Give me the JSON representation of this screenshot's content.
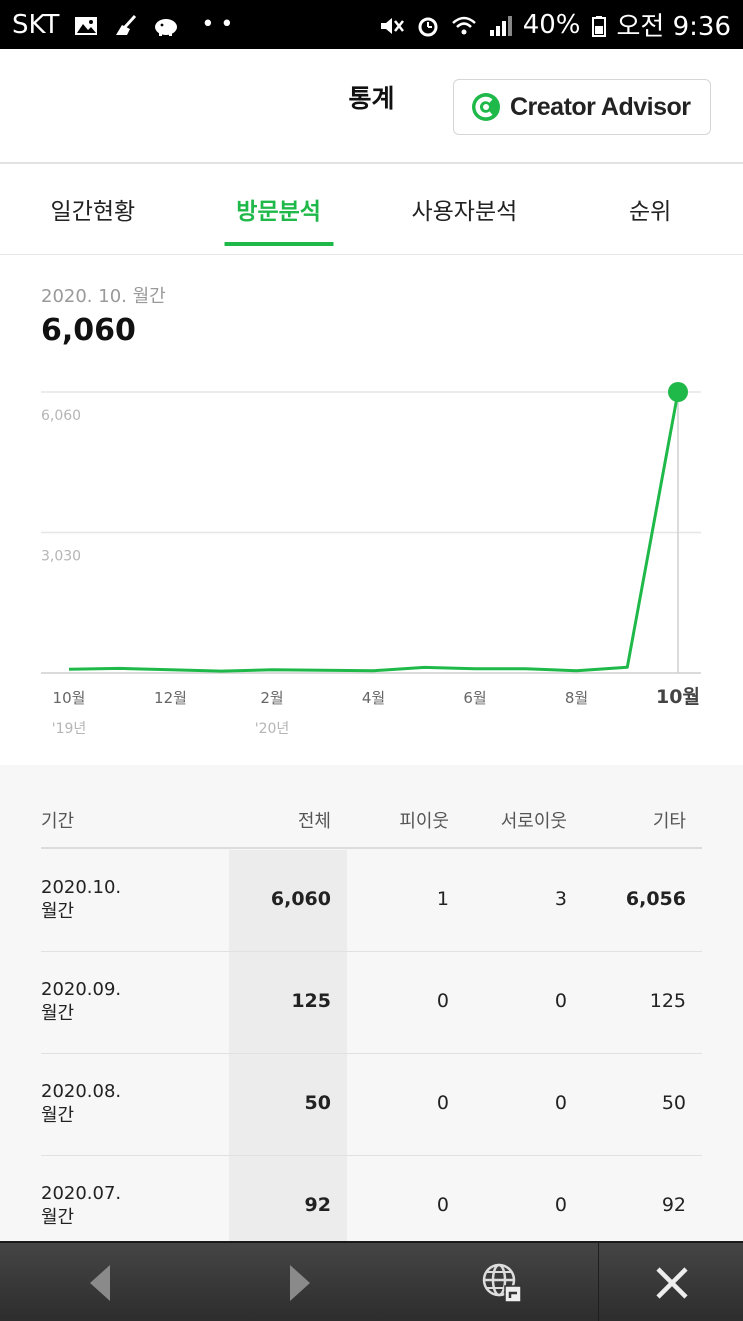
{
  "statusbar": {
    "carrier": "SKT",
    "battery": "40%",
    "time": "오전 9:36"
  },
  "header": {
    "title": "통계",
    "creator_advisor_label": "Creator Advisor"
  },
  "tabs": [
    {
      "label": "일간현황",
      "active": false
    },
    {
      "label": "방문분석",
      "active": true
    },
    {
      "label": "사용자분석",
      "active": false
    },
    {
      "label": "순위",
      "active": false
    }
  ],
  "summary": {
    "period": "2020. 10. 월간",
    "total": "6,060"
  },
  "chart_data": {
    "type": "line",
    "color": "#1fb94a",
    "y_ticks": [
      "6,060",
      "3,030"
    ],
    "ylim": [
      0,
      6060
    ],
    "x_labels": [
      {
        "label": "10월",
        "sub": "'19년",
        "index": 0
      },
      {
        "label": "12월",
        "sub": "",
        "index": 2
      },
      {
        "label": "2월",
        "sub": "'20년",
        "index": 4
      },
      {
        "label": "4월",
        "sub": "",
        "index": 6
      },
      {
        "label": "6월",
        "sub": "",
        "index": 8
      },
      {
        "label": "8월",
        "sub": "",
        "index": 10
      },
      {
        "label": "10월",
        "sub": "",
        "index": 12,
        "bold": true
      }
    ],
    "x": [
      "2019-10",
      "2019-11",
      "2019-12",
      "2020-01",
      "2020-02",
      "2020-03",
      "2020-04",
      "2020-05",
      "2020-06",
      "2020-07",
      "2020-08",
      "2020-09",
      "2020-10"
    ],
    "values": [
      80,
      100,
      70,
      40,
      70,
      60,
      50,
      120,
      90,
      92,
      50,
      125,
      6060
    ]
  },
  "table": {
    "headers": [
      "기간",
      "전체",
      "피이웃",
      "서로이웃",
      "기타"
    ],
    "rows": [
      {
        "date": "2020.10.",
        "period": "월간",
        "total": "6,060",
        "neighbor": "1",
        "mutual": "3",
        "other": "6,056"
      },
      {
        "date": "2020.09.",
        "period": "월간",
        "total": "125",
        "neighbor": "0",
        "mutual": "0",
        "other": "125"
      },
      {
        "date": "2020.08.",
        "period": "월간",
        "total": "50",
        "neighbor": "0",
        "mutual": "0",
        "other": "50"
      },
      {
        "date": "2020.07.",
        "period": "월간",
        "total": "92",
        "neighbor": "0",
        "mutual": "0",
        "other": "92"
      }
    ]
  }
}
